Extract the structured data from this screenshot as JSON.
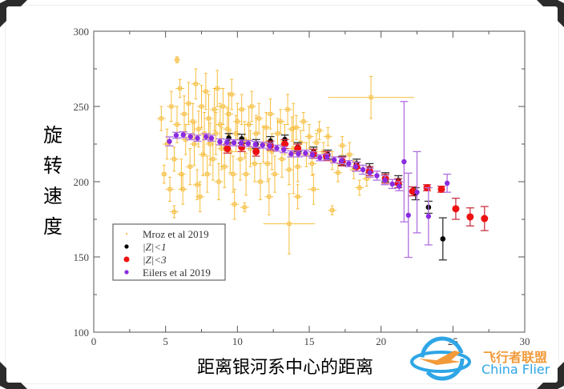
{
  "chart_data": {
    "type": "scatter",
    "xlabel": "距离银河系中心的距离",
    "ylabel": "旋转速度",
    "xlim": [
      0,
      30
    ],
    "ylim": [
      100,
      300
    ],
    "x_ticks": [
      "0",
      "5",
      "10",
      "15",
      "20",
      "25",
      "30"
    ],
    "y_ticks": [
      "100",
      "150",
      "200",
      "250",
      "300"
    ],
    "grid": false,
    "legend_position": "bottom-left",
    "series": [
      {
        "name": "Mroz et al 2019",
        "color": "#f5b21a",
        "marker": "cross",
        "points": [
          [
            5.8,
            281,
            0.2,
            2
          ],
          [
            19.3,
            256,
            3,
            14
          ],
          [
            13.6,
            172,
            1.8,
            20
          ],
          [
            5.6,
            180,
            0.3,
            4
          ],
          [
            10.5,
            183,
            0.3,
            3
          ],
          [
            16.6,
            181,
            0.3,
            3
          ],
          [
            4.9,
            205,
            0.2,
            6
          ],
          [
            4.7,
            242,
            0.3,
            8
          ],
          [
            5.1,
            225,
            0.3,
            10
          ],
          [
            5.3,
            195,
            0.3,
            8
          ],
          [
            5.4,
            250,
            0.3,
            10
          ],
          [
            5.6,
            215,
            0.3,
            8
          ],
          [
            5.8,
            238,
            0.3,
            12
          ],
          [
            6.0,
            262,
            0.3,
            6
          ],
          [
            6.1,
            205,
            0.3,
            10
          ],
          [
            6.3,
            245,
            0.3,
            12
          ],
          [
            6.4,
            228,
            0.3,
            10
          ],
          [
            6.6,
            252,
            0.3,
            14
          ],
          [
            6.7,
            210,
            0.3,
            12
          ],
          [
            6.9,
            240,
            0.3,
            12
          ],
          [
            7.0,
            225,
            0.3,
            14
          ],
          [
            7.1,
            265,
            0.3,
            10
          ],
          [
            7.2,
            198,
            0.3,
            10
          ],
          [
            7.3,
            235,
            0.3,
            12
          ],
          [
            7.5,
            250,
            0.3,
            14
          ],
          [
            7.6,
            218,
            0.3,
            14
          ],
          [
            7.7,
            232,
            0.3,
            14
          ],
          [
            7.8,
            260,
            0.3,
            12
          ],
          [
            7.9,
            205,
            0.3,
            12
          ],
          [
            8.0,
            242,
            0.3,
            16
          ],
          [
            8.1,
            225,
            0.3,
            14
          ],
          [
            8.3,
            215,
            0.3,
            14
          ],
          [
            8.4,
            248,
            0.3,
            14
          ],
          [
            8.5,
            232,
            0.3,
            14
          ],
          [
            8.6,
            262,
            0.3,
            12
          ],
          [
            8.7,
            200,
            0.3,
            12
          ],
          [
            8.8,
            238,
            0.3,
            14
          ],
          [
            8.9,
            222,
            0.3,
            14
          ],
          [
            9.0,
            250,
            0.3,
            12
          ],
          [
            9.1,
            210,
            0.3,
            14
          ],
          [
            9.3,
            235,
            0.3,
            14
          ],
          [
            9.4,
            245,
            0.3,
            14
          ],
          [
            9.5,
            220,
            0.3,
            14
          ],
          [
            9.6,
            258,
            0.3,
            10
          ],
          [
            9.7,
            205,
            0.3,
            12
          ],
          [
            9.9,
            232,
            0.3,
            12
          ],
          [
            10.0,
            240,
            0.3,
            12
          ],
          [
            10.2,
            215,
            0.3,
            14
          ],
          [
            10.3,
            248,
            0.3,
            10
          ],
          [
            10.5,
            228,
            0.3,
            12
          ],
          [
            10.6,
            205,
            0.3,
            14
          ],
          [
            10.8,
            238,
            0.3,
            12
          ],
          [
            10.9,
            222,
            0.3,
            12
          ],
          [
            11.0,
            250,
            0.3,
            10
          ],
          [
            11.2,
            212,
            0.3,
            12
          ],
          [
            11.3,
            232,
            0.3,
            12
          ],
          [
            11.5,
            242,
            0.3,
            10
          ],
          [
            11.6,
            200,
            0.3,
            12
          ],
          [
            11.8,
            225,
            0.3,
            12
          ],
          [
            12.0,
            236,
            0.3,
            10
          ],
          [
            12.1,
            212,
            0.3,
            12
          ],
          [
            12.3,
            245,
            0.3,
            10
          ],
          [
            12.4,
            220,
            0.3,
            12
          ],
          [
            12.6,
            205,
            0.3,
            12
          ],
          [
            12.8,
            232,
            0.3,
            10
          ],
          [
            13.0,
            240,
            0.3,
            8
          ],
          [
            13.1,
            215,
            0.3,
            12
          ],
          [
            13.3,
            228,
            0.3,
            10
          ],
          [
            13.5,
            248,
            0.3,
            10
          ],
          [
            13.6,
            208,
            0.3,
            10
          ],
          [
            13.8,
            235,
            0.3,
            8
          ],
          [
            13.9,
            222,
            0.5,
            30
          ],
          [
            14.1,
            236,
            0.3,
            8
          ],
          [
            14.2,
            210,
            0.3,
            10
          ],
          [
            14.4,
            226,
            0.3,
            8
          ],
          [
            14.6,
            240,
            0.3,
            6
          ],
          [
            14.8,
            218,
            0.3,
            8
          ],
          [
            15.0,
            230,
            0.3,
            8
          ],
          [
            15.2,
            212,
            0.3,
            8
          ],
          [
            15.5,
            226,
            0.3,
            6
          ],
          [
            15.7,
            234,
            0.3,
            6
          ],
          [
            16.0,
            220,
            0.3,
            6
          ],
          [
            16.3,
            230,
            0.3,
            6
          ],
          [
            16.6,
            214,
            0.3,
            6
          ],
          [
            17.0,
            206,
            0.3,
            6
          ],
          [
            17.3,
            224,
            0.3,
            6
          ],
          [
            17.8,
            218,
            0.3,
            8
          ],
          [
            18.1,
            208,
            0.3,
            6
          ],
          [
            18.5,
            196,
            0.3,
            5
          ],
          [
            19.0,
            202,
            0.3,
            5
          ],
          [
            15.3,
            195,
            0.4,
            10
          ],
          [
            12.2,
            190,
            0.3,
            12
          ],
          [
            9.8,
            185,
            0.3,
            10
          ],
          [
            7.4,
            190,
            0.3,
            10
          ],
          [
            6.2,
            195,
            0.3,
            10
          ],
          [
            14.2,
            190,
            0.3,
            8
          ]
        ]
      },
      {
        "name": "|Z|<1",
        "color": "#000000",
        "marker": "circle",
        "points": [
          [
            9.4,
            229,
            3
          ],
          [
            10.3,
            228.5,
            3
          ],
          [
            11.3,
            225,
            3
          ],
          [
            12.3,
            227,
            3
          ],
          [
            13.3,
            228,
            3
          ],
          [
            14.2,
            223,
            3
          ],
          [
            15.3,
            220,
            3
          ],
          [
            16.3,
            218,
            3
          ],
          [
            17.3,
            214,
            3
          ],
          [
            18.3,
            212,
            3
          ],
          [
            19.2,
            209,
            3
          ],
          [
            20.3,
            203,
            3
          ],
          [
            21.2,
            201,
            3
          ],
          [
            22.4,
            192,
            4
          ],
          [
            23.3,
            183,
            4
          ],
          [
            24.3,
            162,
            14
          ]
        ]
      },
      {
        "name": "|Z|<3",
        "color": "#ee1111",
        "marker": "circle",
        "points": [
          [
            9.3,
            222,
            3
          ],
          [
            10.3,
            223,
            3
          ],
          [
            11.3,
            220,
            3
          ],
          [
            12.3,
            224,
            3
          ],
          [
            13.3,
            225,
            3
          ],
          [
            14.2,
            222,
            3
          ],
          [
            15.3,
            218.6,
            3
          ],
          [
            16.2,
            217,
            3
          ],
          [
            17.3,
            213.5,
            3
          ],
          [
            18.3,
            210,
            3
          ],
          [
            19.2,
            207,
            3
          ],
          [
            20.3,
            202,
            3
          ],
          [
            21.2,
            199,
            3
          ],
          [
            22.2,
            193.6,
            3
          ],
          [
            23.2,
            196,
            2
          ],
          [
            24.2,
            195,
            2
          ],
          [
            25.2,
            182,
            7
          ],
          [
            26.2,
            176.6,
            6
          ],
          [
            27.2,
            175.5,
            8
          ]
        ]
      },
      {
        "name": "Eilers et al 2019",
        "color": "#8a2be2",
        "marker": "circle",
        "points": [
          [
            5.27,
            226.8,
            3
          ],
          [
            5.74,
            230.8,
            2
          ],
          [
            6.23,
            231.2,
            2
          ],
          [
            6.73,
            229.9,
            2
          ],
          [
            7.22,
            228.9,
            2
          ],
          [
            7.82,
            229.9,
            2
          ],
          [
            8.19,
            228.9,
            2
          ],
          [
            8.78,
            226.5,
            2
          ],
          [
            9.27,
            226.2,
            2
          ],
          [
            9.76,
            225.9,
            2
          ],
          [
            10.26,
            225.7,
            2
          ],
          [
            10.75,
            225.4,
            2
          ],
          [
            11.25,
            224.8,
            2
          ],
          [
            11.75,
            224.3,
            2
          ],
          [
            12.25,
            223.7,
            2
          ],
          [
            12.74,
            222.3,
            2
          ],
          [
            13.23,
            221.3,
            2
          ],
          [
            13.74,
            218.5,
            2
          ],
          [
            14.24,
            218.5,
            2
          ],
          [
            14.74,
            219,
            2
          ],
          [
            15.22,
            217.9,
            2
          ],
          [
            15.74,
            215.9,
            2
          ],
          [
            16.24,
            216.5,
            2
          ],
          [
            16.74,
            214.5,
            2
          ],
          [
            17.25,
            214,
            2
          ],
          [
            17.75,
            212,
            2
          ],
          [
            18.24,
            210,
            3
          ],
          [
            18.74,
            208,
            3
          ],
          [
            19.22,
            206,
            3
          ],
          [
            19.71,
            204,
            3
          ],
          [
            20.27,
            201,
            3
          ],
          [
            20.78,
            198.5,
            3
          ],
          [
            21.26,
            197,
            3
          ],
          [
            21.6,
            213.3,
            40
          ],
          [
            21.9,
            177.7,
            28
          ],
          [
            22.5,
            193,
            27
          ],
          [
            23.3,
            177,
            19
          ],
          [
            24.6,
            199,
            6
          ]
        ]
      }
    ]
  },
  "logo": {
    "cn": "飞行者联盟",
    "en": "China Flier"
  }
}
